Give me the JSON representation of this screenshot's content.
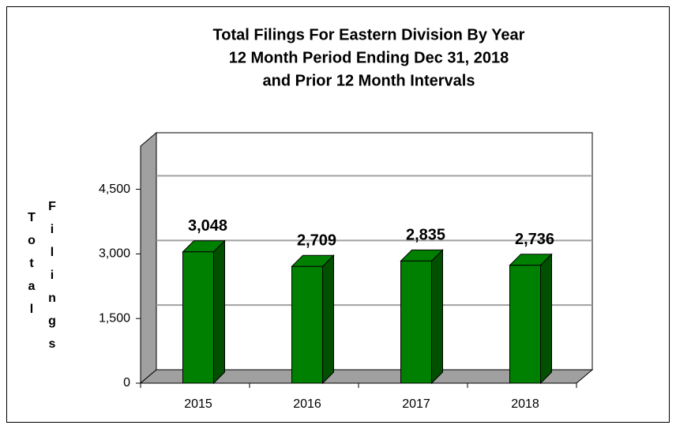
{
  "chart_data": {
    "type": "bar3d",
    "title": [
      "Total Filings For Eastern Division By Year",
      "12 Month Period Ending Dec 31, 2018",
      "and Prior 12 Month Intervals"
    ],
    "y_label": [
      "Total",
      "Filings"
    ],
    "categories": [
      "2015",
      "2016",
      "2017",
      "2018"
    ],
    "values": [
      3048,
      2709,
      2835,
      2736
    ],
    "value_labels": [
      "3,048",
      "2,709",
      "2,835",
      "2,736"
    ],
    "color": "#008000",
    "ylim": [
      0,
      5500
    ],
    "yticks": [
      0,
      {
        "value": 1500,
        "label": "1,500"
      },
      {
        "value": 3000,
        "label": "3,000"
      },
      {
        "value": 4500,
        "label": "4,500"
      }
    ],
    "grid": true
  }
}
